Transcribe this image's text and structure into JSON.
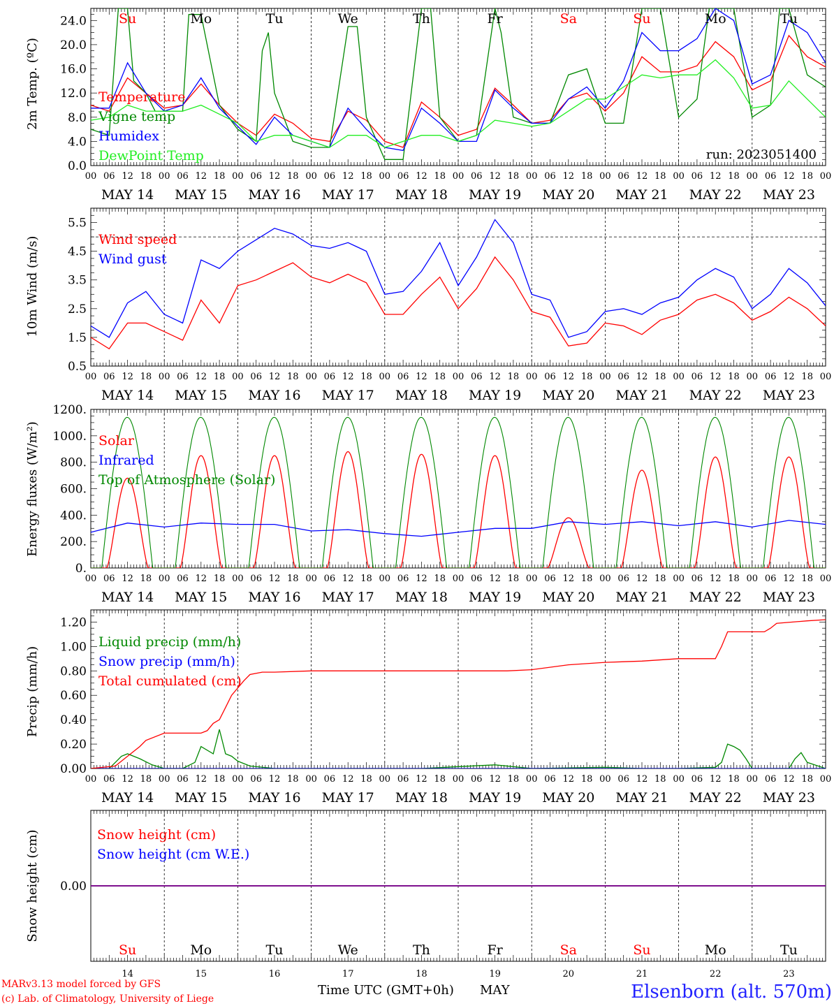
{
  "run_label": "run: 2023051400",
  "footer": {
    "model": "MARv3.13 model forced by GFS",
    "copyright": "(c) Lab. of Climatology, University of Liege",
    "xlabel": "Time UTC (GMT+0h)",
    "month": "MAY",
    "station": "Elsenborn (alt. 570m)"
  },
  "colors": {
    "red": "#ff0000",
    "blue": "#0000ff",
    "green": "#008800",
    "light_green": "#22ee22",
    "purple": "#7f007f",
    "weekend": "#ff0000",
    "weekday": "#000000",
    "station": "#2222ff"
  },
  "days": {
    "weekday_labels": [
      "Su",
      "Mo",
      "Tu",
      "We",
      "Th",
      "Fr",
      "Sa",
      "Su",
      "Mo",
      "Tu"
    ],
    "weekend_flags": [
      true,
      false,
      false,
      false,
      false,
      false,
      true,
      true,
      false,
      false
    ],
    "date_labels": [
      "MAY 14",
      "MAY 15",
      "MAY 16",
      "MAY 17",
      "MAY 18",
      "MAY 19",
      "MAY 20",
      "MAY 21",
      "MAY 22",
      "MAY 23"
    ],
    "day_numbers": [
      "14",
      "15",
      "16",
      "17",
      "18",
      "19",
      "20",
      "21",
      "22",
      "23"
    ],
    "hour_labels": [
      "00",
      "06",
      "12",
      "18"
    ],
    "final_hour_label": "00"
  },
  "chart_data": [
    {
      "id": "temperature",
      "type": "line",
      "ylabel": "2m Temp. (ºC)",
      "ylim": [
        0,
        26
      ],
      "yticks": [
        "0.0",
        "4.0",
        "8.0",
        "12.0",
        "16.0",
        "20.0",
        "24.0"
      ],
      "x_unit": "hours since 2023-05-14 00 UTC",
      "series": [
        {
          "name": "Temperature",
          "color": "#ff0000",
          "x": [
            0,
            6,
            12,
            18,
            24,
            30,
            36,
            42,
            48,
            54,
            60,
            66,
            72,
            78,
            84,
            90,
            96,
            102,
            108,
            114,
            120,
            126,
            132,
            138,
            144,
            150,
            156,
            162,
            168,
            174,
            180,
            186,
            192,
            198,
            204,
            210,
            216,
            222,
            228,
            234,
            240
          ],
          "y": [
            10,
            9,
            14.5,
            12,
            9.5,
            10,
            13.5,
            10,
            7,
            5,
            8.5,
            7,
            4.5,
            4,
            9,
            7.5,
            4,
            3,
            10.5,
            8,
            5,
            6,
            12.8,
            10,
            7,
            7.5,
            11,
            12,
            9,
            12,
            18,
            15.5,
            15.5,
            16.5,
            20.5,
            18,
            12.5,
            14,
            21.5,
            18,
            16.3
          ]
        },
        {
          "name": "Vigne temp",
          "color": "#008800",
          "x": [
            0,
            6,
            9,
            12,
            14,
            18,
            21,
            24,
            30,
            32,
            36,
            42,
            48,
            54,
            56,
            58,
            60,
            66,
            72,
            78,
            84,
            87,
            90,
            96,
            102,
            108,
            111,
            114,
            120,
            126,
            132,
            134,
            138,
            144,
            150,
            156,
            162,
            168,
            174,
            180,
            186,
            192,
            198,
            202,
            204,
            210,
            216,
            222,
            225,
            228,
            234,
            240
          ],
          "y": [
            6,
            5,
            26,
            26,
            14,
            12,
            9,
            9,
            9,
            25,
            25,
            10,
            6,
            4,
            19,
            22,
            12,
            4,
            3,
            3,
            23,
            23,
            8,
            1,
            1,
            26,
            26,
            8,
            4,
            5,
            26,
            22,
            8,
            7,
            7,
            15,
            16,
            7,
            7,
            26,
            26,
            8,
            11,
            26,
            26,
            26,
            8,
            10,
            26,
            26,
            15,
            13
          ]
        },
        {
          "name": "Humidex",
          "color": "#0000ff",
          "x": [
            0,
            6,
            12,
            18,
            24,
            30,
            36,
            42,
            48,
            54,
            60,
            66,
            72,
            78,
            84,
            90,
            96,
            102,
            108,
            114,
            120,
            126,
            132,
            138,
            144,
            150,
            156,
            162,
            168,
            174,
            180,
            186,
            192,
            198,
            204,
            210,
            216,
            222,
            228,
            234,
            240
          ],
          "y": [
            9.5,
            9.5,
            17,
            12,
            9,
            10,
            14.5,
            9.5,
            6.5,
            3.5,
            8,
            5,
            4,
            3,
            9.5,
            6,
            3,
            2.5,
            9.5,
            7,
            4,
            4,
            12.5,
            9.5,
            7,
            7,
            11,
            13,
            9.5,
            14,
            22,
            19,
            19,
            21,
            26,
            24,
            13.5,
            15,
            24,
            22,
            17
          ]
        },
        {
          "name": "DewPoint Temp",
          "color": "#22ee22",
          "x": [
            0,
            6,
            12,
            18,
            24,
            30,
            36,
            42,
            48,
            54,
            60,
            66,
            72,
            78,
            84,
            90,
            96,
            102,
            108,
            114,
            120,
            126,
            132,
            138,
            144,
            150,
            156,
            162,
            168,
            174,
            180,
            186,
            192,
            198,
            204,
            210,
            216,
            222,
            228,
            234,
            240
          ],
          "y": [
            7.5,
            8,
            10,
            9,
            9,
            9,
            10,
            8.5,
            7,
            4,
            5,
            5,
            4,
            3,
            5,
            5,
            3,
            4,
            5,
            5,
            4,
            5,
            7.5,
            7,
            6.5,
            7,
            9,
            11,
            11,
            13,
            15,
            14.5,
            15,
            15,
            17.5,
            14.5,
            9.5,
            10,
            14,
            11,
            8
          ]
        }
      ]
    },
    {
      "id": "wind",
      "type": "line",
      "ylabel": "10m Wind (m/s)",
      "ylim": [
        0.5,
        6
      ],
      "yticks": [
        "0.5",
        "1.5",
        "2.5",
        "3.5",
        "4.5",
        "5.5"
      ],
      "reference_line": 5,
      "series": [
        {
          "name": "Wind speed",
          "color": "#ff0000",
          "x": [
            0,
            6,
            12,
            18,
            24,
            30,
            36,
            42,
            48,
            54,
            60,
            66,
            72,
            78,
            84,
            90,
            96,
            102,
            108,
            114,
            120,
            126,
            132,
            138,
            144,
            150,
            156,
            162,
            168,
            174,
            180,
            186,
            192,
            198,
            204,
            210,
            216,
            222,
            228,
            234,
            240
          ],
          "y": [
            1.5,
            1.1,
            2,
            2,
            1.7,
            1.4,
            2.8,
            2,
            3.3,
            3.5,
            3.8,
            4.1,
            3.6,
            3.4,
            3.7,
            3.4,
            2.3,
            2.3,
            3,
            3.6,
            2.5,
            3.2,
            4.3,
            3.5,
            2.4,
            2.2,
            1.2,
            1.3,
            2,
            1.9,
            1.6,
            2.1,
            2.3,
            2.8,
            3,
            2.7,
            2.1,
            2.4,
            2.9,
            2.5,
            1.9
          ]
        },
        {
          "name": "Wind gust",
          "color": "#0000ff",
          "x": [
            0,
            6,
            12,
            18,
            24,
            30,
            36,
            42,
            48,
            54,
            60,
            66,
            72,
            78,
            84,
            90,
            96,
            102,
            108,
            114,
            120,
            126,
            132,
            138,
            144,
            150,
            156,
            162,
            168,
            174,
            180,
            186,
            192,
            198,
            204,
            210,
            216,
            222,
            228,
            234,
            240
          ],
          "y": [
            1.9,
            1.5,
            2.7,
            3.1,
            2.3,
            2,
            4.2,
            3.9,
            4.5,
            4.9,
            5.3,
            5.1,
            4.7,
            4.6,
            4.8,
            4.5,
            3,
            3.1,
            3.8,
            4.8,
            3.3,
            4.3,
            5.6,
            4.8,
            3,
            2.8,
            1.5,
            1.7,
            2.4,
            2.5,
            2.3,
            2.7,
            2.9,
            3.5,
            3.9,
            3.6,
            2.5,
            3,
            3.9,
            3.4,
            2.6
          ]
        }
      ]
    },
    {
      "id": "energy",
      "type": "line",
      "ylabel": "Energy fluxes (W/m²)",
      "ylim": [
        0,
        1200
      ],
      "yticks": [
        "0.",
        "200.",
        "400.",
        "600.",
        "800.",
        "1000.",
        "1200."
      ],
      "series": [
        {
          "name": "Solar",
          "color": "#ff0000",
          "peaks_w_m2": [
            680,
            850,
            850,
            880,
            860,
            850,
            380,
            740,
            840,
            840
          ]
        },
        {
          "name": "Infrared",
          "color": "#0000ff",
          "x": [
            0,
            12,
            24,
            36,
            48,
            60,
            72,
            84,
            96,
            108,
            120,
            132,
            144,
            156,
            168,
            180,
            192,
            204,
            216,
            228,
            240
          ],
          "y": [
            270,
            340,
            310,
            340,
            330,
            330,
            280,
            290,
            260,
            240,
            270,
            300,
            300,
            350,
            330,
            350,
            320,
            350,
            310,
            360,
            330
          ]
        },
        {
          "name": "Top of Atmosphere (Solar)",
          "color": "#008800",
          "peak_w_m2": 1140,
          "sunrise_hour": 3.6,
          "sunset_hour": 20.2
        }
      ]
    },
    {
      "id": "precip",
      "type": "line",
      "ylabel": "Precip (mm/h)",
      "ylim": [
        0,
        1.3
      ],
      "yticks": [
        "0.00",
        "0.20",
        "0.40",
        "0.60",
        "0.80",
        "1.00",
        "1.20"
      ],
      "series": [
        {
          "name": "Liquid precip (mm/h)",
          "color": "#008800",
          "x": [
            0,
            6,
            8,
            10,
            12,
            16,
            20,
            24,
            30,
            34,
            36,
            40,
            42,
            44,
            46,
            48,
            52,
            60,
            84,
            108,
            132,
            144,
            168,
            180,
            192,
            204,
            206,
            208,
            210,
            212,
            214,
            216,
            228,
            230,
            232,
            234,
            240
          ],
          "y": [
            0,
            0,
            0.05,
            0.1,
            0.12,
            0.08,
            0.03,
            0,
            0,
            0.05,
            0.18,
            0.12,
            0.32,
            0.12,
            0.1,
            0.06,
            0.02,
            0,
            0,
            0,
            0.03,
            0,
            0.01,
            0,
            0,
            0.01,
            0.05,
            0.2,
            0.18,
            0.15,
            0.08,
            0,
            0,
            0.08,
            0.13,
            0.05,
            0
          ]
        },
        {
          "name": "Snow precip (mm/h)",
          "color": "#0000ff",
          "x": [
            0,
            240
          ],
          "y": [
            0,
            0
          ]
        },
        {
          "name": "Total cumulated (cm)",
          "color": "#ff0000",
          "x": [
            0,
            8,
            12,
            16,
            18,
            24,
            28,
            36,
            38,
            40,
            42,
            44,
            46,
            50,
            52,
            56,
            60,
            72,
            96,
            120,
            136,
            144,
            156,
            168,
            180,
            192,
            200,
            204,
            206,
            208,
            216,
            220,
            222,
            224,
            234,
            240
          ],
          "y": [
            0,
            0.02,
            0.1,
            0.18,
            0.23,
            0.29,
            0.29,
            0.29,
            0.31,
            0.37,
            0.4,
            0.5,
            0.6,
            0.72,
            0.77,
            0.79,
            0.79,
            0.8,
            0.8,
            0.8,
            0.8,
            0.81,
            0.85,
            0.87,
            0.88,
            0.9,
            0.9,
            0.9,
            1.0,
            1.12,
            1.12,
            1.12,
            1.15,
            1.19,
            1.21,
            1.22
          ]
        }
      ]
    },
    {
      "id": "snow",
      "type": "line",
      "ylabel": "Snow height (cm)",
      "ylim": [
        -1,
        1
      ],
      "yticks": [
        "0.00"
      ],
      "series": [
        {
          "name": "Snow height (cm)",
          "color": "#ff0000",
          "x": [
            0,
            240
          ],
          "y": [
            0,
            0
          ]
        },
        {
          "name": "Snow height (cm W.E.)",
          "color": "#0000ff",
          "x": [
            0,
            240
          ],
          "y": [
            0,
            0
          ]
        }
      ]
    }
  ]
}
